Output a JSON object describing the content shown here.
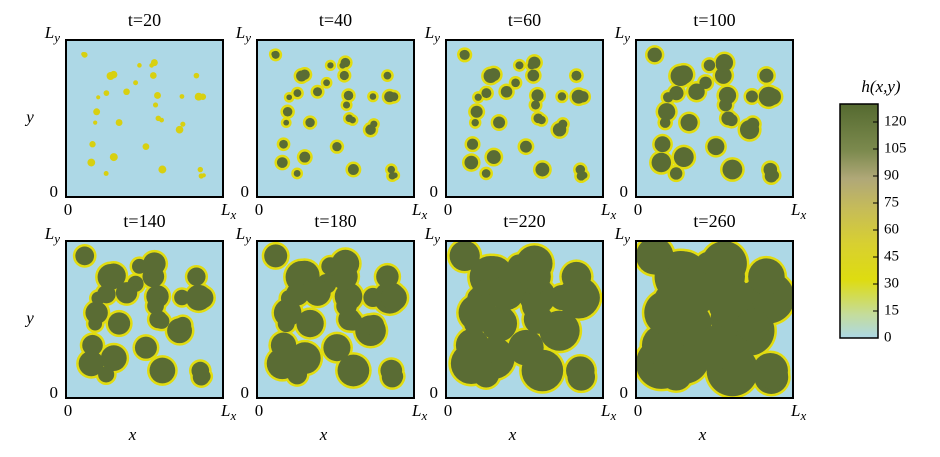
{
  "panels": [
    {
      "title": "t=20",
      "y_max": {
        "main": "L",
        "sub": "y"
      },
      "y_min": "0",
      "x_min": "0",
      "x_max": {
        "main": "L",
        "sub": "x"
      }
    },
    {
      "title": "t=40",
      "y_max": {
        "main": "L",
        "sub": "y"
      },
      "y_min": "0",
      "x_min": "0",
      "x_max": {
        "main": "L",
        "sub": "x"
      }
    },
    {
      "title": "t=60",
      "y_max": {
        "main": "L",
        "sub": "y"
      },
      "y_min": "0",
      "x_min": "0",
      "x_max": {
        "main": "L",
        "sub": "x"
      }
    },
    {
      "title": "t=100",
      "y_max": {
        "main": "L",
        "sub": "y"
      },
      "y_min": "0",
      "x_min": "0",
      "x_max": {
        "main": "L",
        "sub": "x"
      }
    },
    {
      "title": "t=140",
      "y_max": {
        "main": "L",
        "sub": "y"
      },
      "y_min": "0",
      "x_min": "0",
      "x_max": {
        "main": "L",
        "sub": "x"
      }
    },
    {
      "title": "t=180",
      "y_max": {
        "main": "L",
        "sub": "y"
      },
      "y_min": "0",
      "x_min": "0",
      "x_max": {
        "main": "L",
        "sub": "x"
      }
    },
    {
      "title": "t=220",
      "y_max": {
        "main": "L",
        "sub": "y"
      },
      "y_min": "0",
      "x_min": "0",
      "x_max": {
        "main": "L",
        "sub": "x"
      }
    },
    {
      "title": "t=260",
      "y_max": {
        "main": "L",
        "sub": "y"
      },
      "y_min": "0",
      "x_min": "0",
      "x_max": {
        "main": "L",
        "sub": "x"
      }
    }
  ],
  "y_labels": [
    "y",
    "y"
  ],
  "x_labels": [
    "x",
    "x",
    "x",
    "x"
  ],
  "colorbar": {
    "label": "h(x,y)",
    "ylim": [
      0,
      130
    ],
    "ticks": [
      0,
      15,
      30,
      45,
      60,
      75,
      90,
      105,
      120
    ]
  }
}
